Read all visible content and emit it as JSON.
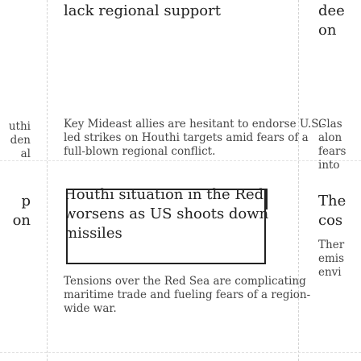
{
  "left_column": {
    "frag_1": "uthi",
    "frag_2": "den",
    "frag_3": "al",
    "frag_4": "p",
    "frag_5": "on"
  },
  "top_article": {
    "headline": "lack regional support",
    "body_lines": [
      "Key Mideast allies are hesitant to endorse U.S.-",
      "led strikes on Houthi targets amid fears of a",
      "full-blown regional conflict."
    ]
  },
  "middle_article": {
    "headline_lines": [
      "Houthi situation in the Red Sea",
      "worsens as US shoots down",
      "missiles"
    ],
    "body_lines": [
      "Tensions over the Red Sea are complicating",
      "maritime trade and fueling fears of a region-",
      "wide war."
    ]
  },
  "right_column": {
    "top_headline_lines": [
      "dee",
      "on"
    ],
    "top_body_lines": [
      "Clas",
      "alon",
      "fears",
      "into"
    ],
    "mid_headline_lines": [
      "The",
      "cos"
    ],
    "mid_body_lines": [
      "Ther",
      "emis",
      "envi"
    ]
  },
  "colors": {
    "headline": "#222222",
    "body": "#444444",
    "focus_outline": "#222222",
    "divider": "#d4d4d4"
  }
}
